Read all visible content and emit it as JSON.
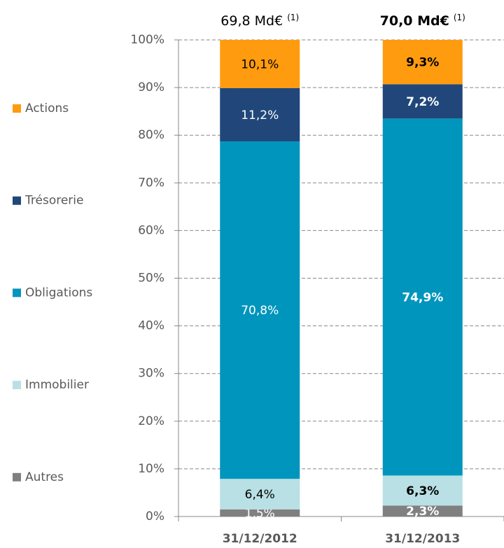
{
  "chart_data": {
    "type": "stacked_bar",
    "categories": [
      "31/12/2012",
      "31/12/2013"
    ],
    "totals": [
      "69,8 Md€",
      "70,0 Md€"
    ],
    "total_note": "(1)",
    "series": [
      {
        "name": "Autres",
        "color": "#808080",
        "values": [
          1.5,
          2.3
        ],
        "value_labels": [
          "1,5%",
          "2,3%"
        ]
      },
      {
        "name": "Immobilier",
        "color": "#b9e0e4",
        "values": [
          6.4,
          6.3
        ],
        "value_labels": [
          "6,4%",
          "6,3%"
        ]
      },
      {
        "name": "Obligations",
        "color": "#0095bd",
        "values": [
          70.8,
          74.9
        ],
        "value_labels": [
          "70,8%",
          "74,9%"
        ]
      },
      {
        "name": "Trésorerie",
        "color": "#21477a",
        "values": [
          11.2,
          7.2
        ],
        "value_labels": [
          "11,2%",
          "7,2%"
        ]
      },
      {
        "name": "Actions",
        "color": "#ff9b0f",
        "values": [
          10.1,
          9.3
        ],
        "value_labels": [
          "10,1%",
          "9,3%"
        ]
      }
    ],
    "ylim": [
      0,
      100
    ],
    "yticks": [
      {
        "value": 0,
        "label": "0%"
      },
      {
        "value": 10,
        "label": "10%"
      },
      {
        "value": 20,
        "label": "20%"
      },
      {
        "value": 30,
        "label": "30%"
      },
      {
        "value": 40,
        "label": "40%"
      },
      {
        "value": 50,
        "label": "50%"
      },
      {
        "value": 60,
        "label": "60%"
      },
      {
        "value": 70,
        "label": "70%"
      },
      {
        "value": 80,
        "label": "80%"
      },
      {
        "value": 90,
        "label": "90%"
      },
      {
        "value": 100,
        "label": "100%"
      }
    ],
    "grid": true
  }
}
